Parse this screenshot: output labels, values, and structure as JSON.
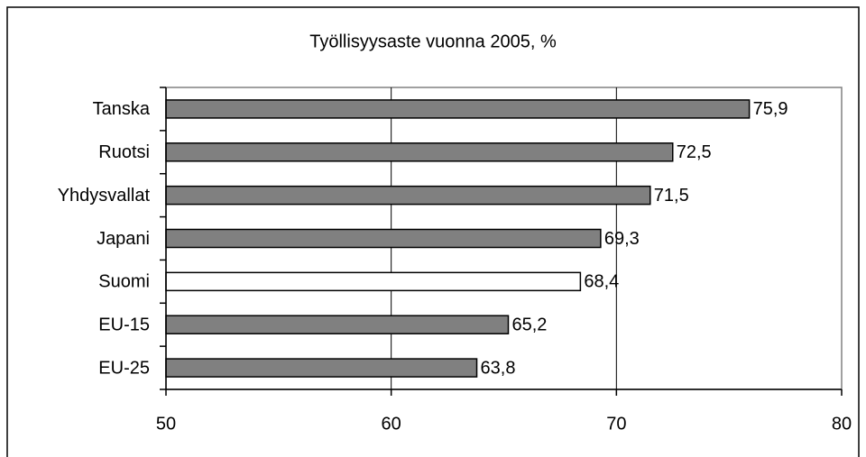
{
  "chart_data": {
    "type": "bar",
    "orientation": "horizontal",
    "title": "Työllisyysaste vuonna 2005, %",
    "categories": [
      "Tanska",
      "Ruotsi",
      "Yhdysvallat",
      "Japani",
      "Suomi",
      "EU-15",
      "EU-25"
    ],
    "values": [
      75.9,
      72.5,
      71.5,
      69.3,
      68.4,
      65.2,
      63.8
    ],
    "value_labels": [
      "75,9",
      "72,5",
      "71,5",
      "69,3",
      "68,4",
      "65,2",
      "63,8"
    ],
    "colors": [
      "#808080",
      "#808080",
      "#808080",
      "#808080",
      "#ffffff",
      "#808080",
      "#808080"
    ],
    "xlim": [
      50,
      80
    ],
    "xticks": [
      50,
      60,
      70,
      80
    ],
    "grid": true
  }
}
